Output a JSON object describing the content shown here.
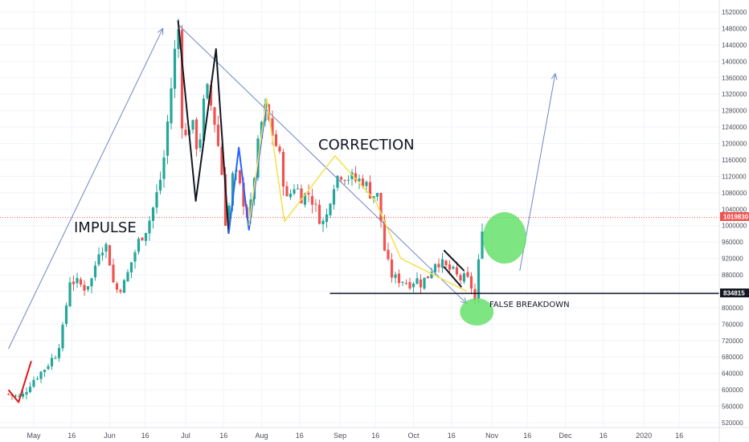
{
  "chart_data": {
    "type": "candlestick",
    "title": "",
    "xlabel": "",
    "ylabel": "",
    "ylim": [
      510000,
      1530000
    ],
    "grid": true,
    "y_ticks": [
      520000,
      560000,
      600000,
      640000,
      680000,
      720000,
      760000,
      800000,
      840000,
      880000,
      920000,
      960000,
      1000000,
      1040000,
      1080000,
      1120000,
      1160000,
      1200000,
      1240000,
      1280000,
      1320000,
      1360000,
      1400000,
      1440000,
      1480000,
      1520000
    ],
    "x_tick_labels": [
      {
        "label": "May",
        "day": -0.3
      },
      {
        "label": "16",
        "day": 1.2
      },
      {
        "label": "Jun",
        "day": 2.7
      },
      {
        "label": "16",
        "day": 4.1
      },
      {
        "label": "Jul",
        "day": 5.7
      },
      {
        "label": "16",
        "day": 7.2
      },
      {
        "label": "Aug",
        "day": 8.7
      },
      {
        "label": "16",
        "day": 10.2
      },
      {
        "label": "Sep",
        "day": 11.8
      },
      {
        "label": "16",
        "day": 13.2
      },
      {
        "label": "Oct",
        "day": 14.7
      },
      {
        "label": "16",
        "day": 16.2
      },
      {
        "label": "Nov",
        "day": 17.8
      },
      {
        "label": "16",
        "day": 19.2
      },
      {
        "label": "Dec",
        "day": 20.7
      },
      {
        "label": "16",
        "day": 22.2
      },
      {
        "label": "2020",
        "day": 23.8
      },
      {
        "label": "16",
        "day": 25.2
      }
    ],
    "current_price": 1019830,
    "current_price_label": "1019830",
    "support_level": 834815,
    "support_label": "834815",
    "colors": {
      "up": "#26a69a",
      "down": "#ef5350",
      "impulse_line": "#7085c6",
      "correction_line": "#f5e04a",
      "wave_black": "#131722",
      "wave_blue": "#2962ff",
      "reversal_red": "#e0191b",
      "highlight_green": "#66e06b"
    },
    "annotations": {
      "impulse": "IMPULSE",
      "correction": "CORRECTION",
      "false_breakdown": "FALSE BREAKDOWN"
    },
    "price_path": [
      [
        -1.3,
        590000
      ],
      [
        -0.8,
        580000
      ],
      [
        -0.4,
        620000
      ],
      [
        0.1,
        650000
      ],
      [
        0.6,
        690000
      ],
      [
        0.9,
        760000
      ],
      [
        1.1,
        870000
      ],
      [
        1.4,
        860000
      ],
      [
        1.7,
        850000
      ],
      [
        2.0,
        870000
      ],
      [
        2.3,
        950000
      ],
      [
        2.6,
        950000
      ],
      [
        2.9,
        840000
      ],
      [
        3.3,
        860000
      ],
      [
        3.6,
        920000
      ],
      [
        3.9,
        970000
      ],
      [
        4.2,
        1000000
      ],
      [
        4.5,
        1060000
      ],
      [
        4.8,
        1140000
      ],
      [
        5.2,
        1380000
      ],
      [
        5.4,
        1500000
      ],
      [
        5.6,
        1190000
      ],
      [
        5.9,
        1260000
      ],
      [
        6.2,
        1180000
      ],
      [
        6.5,
        1340000
      ],
      [
        6.8,
        1270000
      ],
      [
        7.1,
        1150000
      ],
      [
        7.3,
        990000
      ],
      [
        7.6,
        1140000
      ],
      [
        7.9,
        1080000
      ],
      [
        8.2,
        1010000
      ],
      [
        8.5,
        1170000
      ],
      [
        8.8,
        1290000
      ],
      [
        9.1,
        1230000
      ],
      [
        9.4,
        1170000
      ],
      [
        9.7,
        1060000
      ],
      [
        10.0,
        1100000
      ],
      [
        10.3,
        1070000
      ],
      [
        10.6,
        1080000
      ],
      [
        10.9,
        1030000
      ],
      [
        11.2,
        1000000
      ],
      [
        11.5,
        1100000
      ],
      [
        11.8,
        1130000
      ],
      [
        12.1,
        1120000
      ],
      [
        12.4,
        1110000
      ],
      [
        12.7,
        1110000
      ],
      [
        13.0,
        1080000
      ],
      [
        13.3,
        1070000
      ],
      [
        13.6,
        920000
      ],
      [
        13.9,
        870000
      ],
      [
        14.2,
        870000
      ],
      [
        14.5,
        860000
      ],
      [
        14.8,
        870000
      ],
      [
        15.0,
        860000
      ],
      [
        15.3,
        880000
      ],
      [
        15.6,
        920000
      ],
      [
        15.9,
        900000
      ],
      [
        16.2,
        890000
      ],
      [
        16.5,
        870000
      ],
      [
        16.8,
        870000
      ],
      [
        17.0,
        850000
      ],
      [
        17.2,
        800000
      ],
      [
        17.3,
        950000
      ],
      [
        17.5,
        1040000
      ]
    ]
  }
}
